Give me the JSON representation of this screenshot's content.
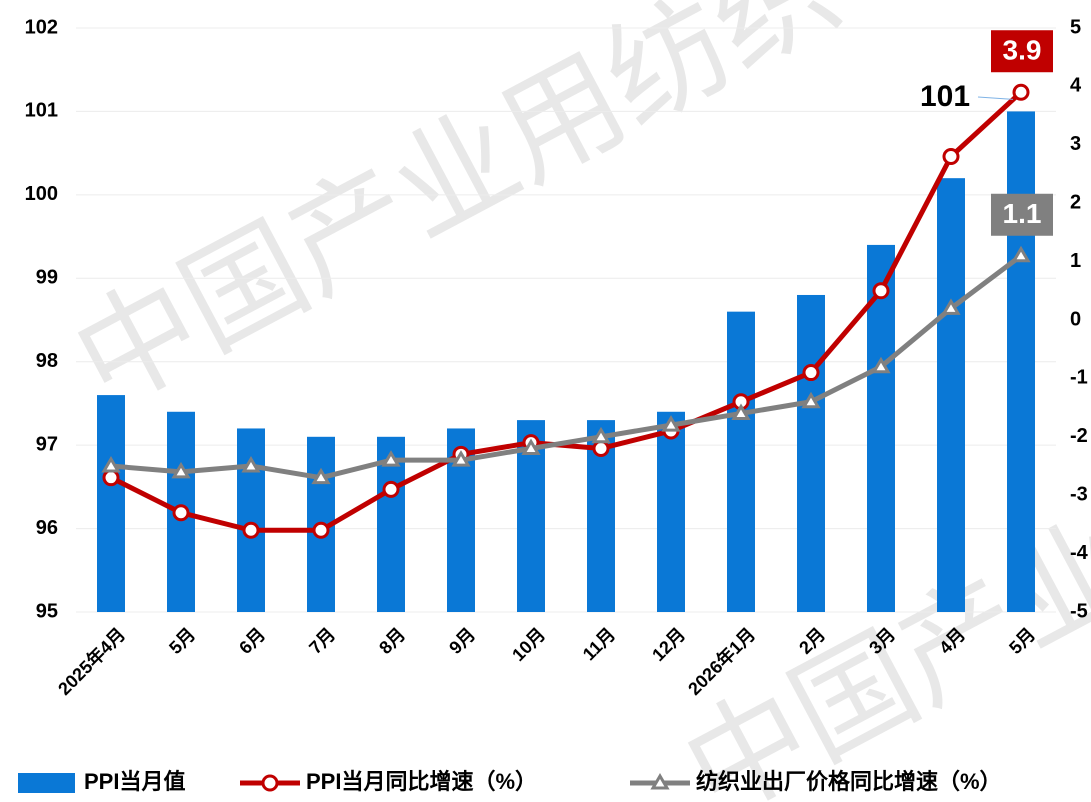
{
  "chart_data": {
    "type": "bar_line",
    "watermark": "中国产业用纺织",
    "categories": [
      "2025年4月",
      "5月",
      "6月",
      "7月",
      "8月",
      "9月",
      "10月",
      "11月",
      "12月",
      "2026年1月",
      "2月",
      "3月",
      "4月",
      "5月"
    ],
    "series": [
      {
        "name": "PPI当月值",
        "type": "bar",
        "color": "#0a78d6",
        "values": [
          97.6,
          97.4,
          97.2,
          97.1,
          97.1,
          97.2,
          97.3,
          97.3,
          97.4,
          98.6,
          98.8,
          99.4,
          100.2,
          101
        ]
      },
      {
        "name": "PPI当月同比增速（%）",
        "type": "line",
        "marker": "circle",
        "axis": "y2",
        "color": "#c00000",
        "values": [
          -2.7,
          -3.3,
          -3.6,
          -3.6,
          -2.9,
          -2.3,
          -2.1,
          -2.2,
          -1.9,
          -1.4,
          -0.9,
          0.5,
          2.8,
          3.9
        ]
      },
      {
        "name": "纺织业出厂价格同比增速（%）",
        "type": "line",
        "marker": "triangle",
        "axis": "y2",
        "color": "#808080",
        "values": [
          -2.5,
          -2.6,
          -2.5,
          -2.7,
          -2.4,
          -2.4,
          -2.2,
          -2.0,
          -1.8,
          -1.6,
          -1.4,
          -0.8,
          0.2,
          1.1
        ]
      }
    ],
    "ylim": [
      95,
      102
    ],
    "yticks": [
      95,
      96,
      97,
      98,
      99,
      100,
      101,
      102
    ],
    "y2lim": [
      -5,
      5
    ],
    "y2ticks": [
      -5,
      -4,
      -3,
      -2,
      -1,
      0,
      1,
      2,
      3,
      4,
      5
    ],
    "grid": true
  }
}
